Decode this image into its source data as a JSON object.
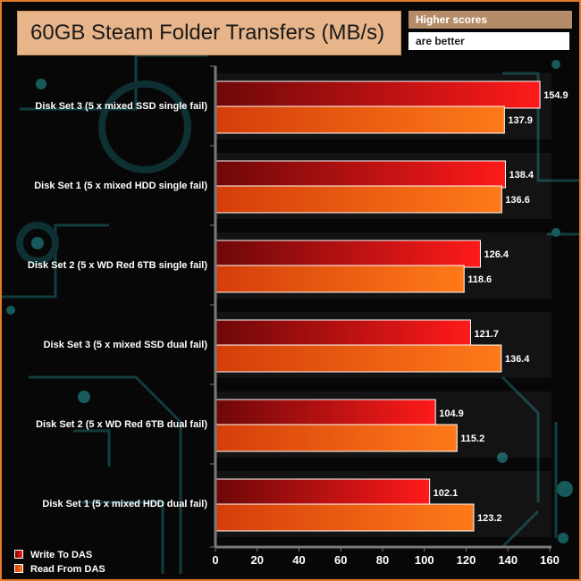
{
  "chart_data": {
    "type": "bar",
    "orientation": "horizontal",
    "title": "60GB Steam Folder Transfers (MB/s)",
    "note": [
      "Higher scores",
      "are better"
    ],
    "categories": [
      "Disk Set 3 (5 x mixed SSD single fail)",
      "Disk Set 1 (5 x mixed HDD single fail)",
      "Disk Set 2 (5 x WD Red 6TB single fail)",
      "Disk Set 3 (5 x mixed SSD dual fail)",
      "Disk Set 2 (5 x WD Red 6TB dual fail)",
      "Disk Set 1 (5 x mixed HDD dual fail)"
    ],
    "series": [
      {
        "name": "Write To DAS",
        "values": [
          154.9,
          138.4,
          126.4,
          121.7,
          104.9,
          102.1
        ]
      },
      {
        "name": "Read From DAS",
        "values": [
          137.9,
          136.6,
          118.6,
          136.4,
          115.2,
          123.2
        ]
      }
    ],
    "value_labels": [
      [
        "154.9",
        "138.4",
        "126.4",
        "121.7",
        "104.9",
        "102.1"
      ],
      [
        "137.9",
        "136.6",
        "118.6",
        "136.4",
        "115.2",
        "123.2"
      ]
    ],
    "xticks": [
      "0",
      "20",
      "40",
      "60",
      "80",
      "100",
      "120",
      "140",
      "160"
    ],
    "xlim": [
      0,
      160
    ],
    "xlabel": "",
    "ylabel": "",
    "grid": false,
    "legend_position": "bottom-left",
    "colors": {
      "write_dark": "#6e0808",
      "write_light": "#ff1a1a",
      "read_dark": "#d43e0a",
      "read_light": "#ff7a1a",
      "bar_border": "#ffffff",
      "title_bg": "#e8b48a",
      "note_bg": "#b48d68",
      "frame": "#e07a28",
      "axis": "#7a7a7a",
      "text": "#ffffff",
      "circuit": "#123c3e"
    }
  }
}
